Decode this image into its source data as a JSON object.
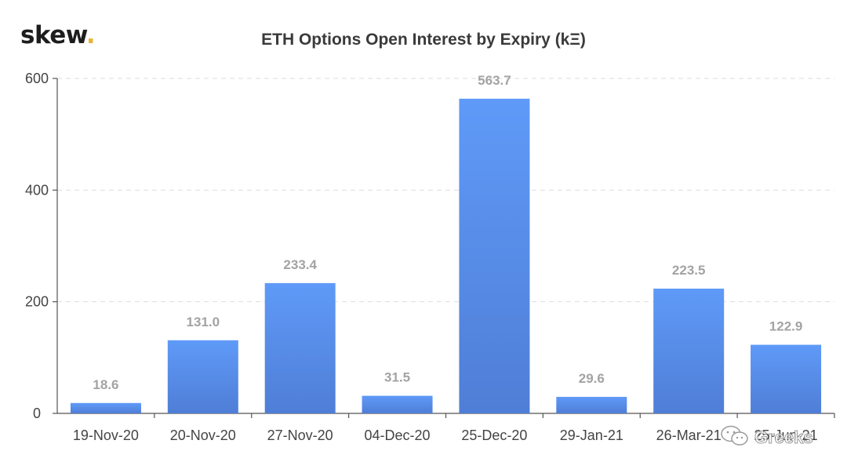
{
  "brand": {
    "logo_text": "skew",
    "logo_dot": ".",
    "dot_color": "#e8b23a"
  },
  "watermark": {
    "text": "Greeks",
    "icon": "wechat-icon"
  },
  "chart_data": {
    "type": "bar",
    "title": "ETH Options Open Interest by Expiry (kΞ)",
    "xlabel": "",
    "ylabel": "",
    "categories": [
      "19-Nov-20",
      "20-Nov-20",
      "27-Nov-20",
      "04-Dec-20",
      "25-Dec-20",
      "29-Jan-21",
      "26-Mar-21",
      "25-Jun-21"
    ],
    "values": [
      18.6,
      131.0,
      233.4,
      31.5,
      563.7,
      29.6,
      223.5,
      122.9
    ],
    "value_labels": [
      "18.6",
      "131.0",
      "233.4",
      "31.5",
      "563.7",
      "29.6",
      "223.5",
      "122.9"
    ],
    "ylim": [
      0,
      600
    ],
    "yticks": [
      0,
      200,
      400,
      600
    ],
    "grid": true,
    "legend": "none",
    "bar_color_top": "#5f9af8",
    "bar_color_bottom": "#4f7ed6"
  }
}
